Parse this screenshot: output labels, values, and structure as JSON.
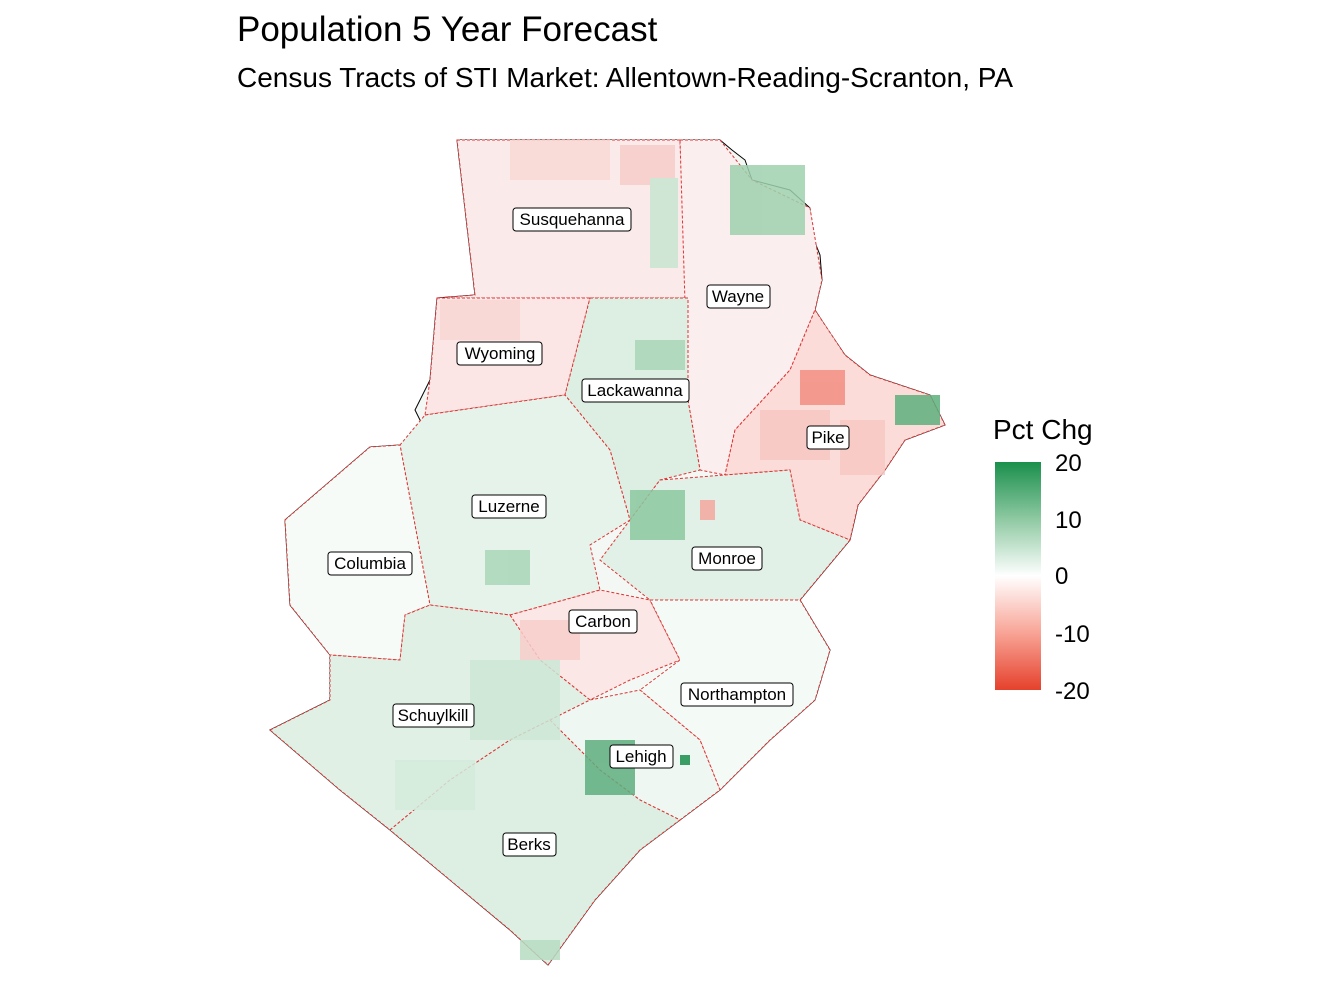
{
  "title": "Population 5 Year Forecast",
  "subtitle": "Census Tracts of STI Market: Allentown-Reading-Scranton, PA",
  "legend": {
    "title": "Pct Chg",
    "ticks": [
      "20",
      "10",
      "0",
      "-10",
      "-20"
    ],
    "low_color": "#e5412c",
    "mid_color": "#ffffff",
    "high_color": "#1a8f4c"
  },
  "counties": [
    {
      "name": "Susquehanna",
      "pct_chg": -4
    },
    {
      "name": "Wayne",
      "pct_chg": -2
    },
    {
      "name": "Wyoming",
      "pct_chg": -4
    },
    {
      "name": "Lackawanna",
      "pct_chg": 4
    },
    {
      "name": "Pike",
      "pct_chg": -6
    },
    {
      "name": "Luzerne",
      "pct_chg": 2
    },
    {
      "name": "Columbia",
      "pct_chg": 0
    },
    {
      "name": "Monroe",
      "pct_chg": 4
    },
    {
      "name": "Carbon",
      "pct_chg": -3
    },
    {
      "name": "Northampton",
      "pct_chg": 2
    },
    {
      "name": "Schuylkill",
      "pct_chg": 4
    },
    {
      "name": "Lehigh",
      "pct_chg": 3
    },
    {
      "name": "Berks",
      "pct_chg": 5
    }
  ]
}
